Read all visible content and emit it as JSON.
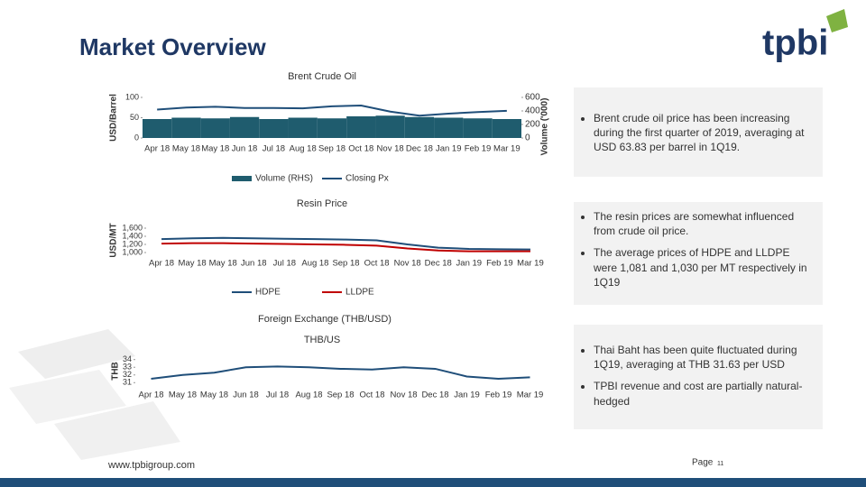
{
  "header": {
    "title": "Market Overview",
    "logo": "tpbi"
  },
  "section_heading": "Foreign Exchange (THB/USD)",
  "chart_data": [
    {
      "type": "combo",
      "title": "Brent Crude Oil",
      "y_label": "USD/Barrel",
      "y2_label": "Volume ('000)",
      "categories": [
        "Apr 18",
        "May 18",
        "May 18",
        "Jun 18",
        "Jul 18",
        "Aug 18",
        "Sep 18",
        "Oct 18",
        "Nov 18",
        "Dec 18",
        "Jan 19",
        "Feb 19",
        "Mar 19"
      ],
      "series": [
        {
          "name": "Volume (RHS)",
          "type": "bar",
          "axis": "y2",
          "color": "#1f5c6e",
          "values": [
            280,
            300,
            290,
            310,
            280,
            300,
            290,
            320,
            330,
            310,
            300,
            290,
            280
          ]
        },
        {
          "name": "Closing Px",
          "type": "line",
          "color": "#1f4e79",
          "values": [
            70,
            75,
            77,
            74,
            74,
            73,
            78,
            80,
            65,
            55,
            60,
            64,
            67
          ]
        }
      ],
      "ylim": [
        0,
        100
      ],
      "yticks": [
        0,
        50,
        100
      ],
      "y2lim": [
        0,
        600
      ],
      "y2ticks": [
        0,
        200,
        400,
        600
      ],
      "legend": "bottom"
    },
    {
      "type": "line",
      "title": "Resin Price",
      "y_label": "USD/MT",
      "categories": [
        "Apr 18",
        "May 18",
        "May 18",
        "Jun 18",
        "Jul 18",
        "Aug 18",
        "Sep 18",
        "Oct 18",
        "Nov 18",
        "Dec 18",
        "Jan 19",
        "Feb 19",
        "Mar 19"
      ],
      "series": [
        {
          "name": "HDPE",
          "color": "#1f4e79",
          "values": [
            1330,
            1350,
            1360,
            1350,
            1340,
            1330,
            1320,
            1300,
            1200,
            1120,
            1090,
            1080,
            1075
          ]
        },
        {
          "name": "LLDPE",
          "color": "#c00000",
          "values": [
            1220,
            1230,
            1230,
            1220,
            1210,
            1200,
            1190,
            1170,
            1100,
            1050,
            1030,
            1030,
            1030
          ]
        }
      ],
      "ylim": [
        1000,
        1600
      ],
      "yticks": [
        {
          "value": 1000,
          "label": "1,000"
        },
        {
          "value": 1200,
          "label": "1,200"
        },
        {
          "value": 1400,
          "label": "1,400"
        },
        {
          "value": 1600,
          "label": "1,600"
        }
      ],
      "legend": "bottom"
    },
    {
      "type": "line",
      "title": "THB/US",
      "y_label": "THB",
      "categories": [
        "Apr 18",
        "May 18",
        "May 18",
        "Jun 18",
        "Jul 18",
        "Aug 18",
        "Sep 18",
        "Oct 18",
        "Nov 18",
        "Dec 18",
        "Jan 19",
        "Feb 19",
        "Mar 19"
      ],
      "series": [
        {
          "color": "#1f4e79",
          "values": [
            31.5,
            32,
            32.3,
            33,
            33.1,
            33,
            32.8,
            32.7,
            33,
            32.8,
            31.8,
            31.5,
            31.7
          ]
        }
      ],
      "ylim": [
        30.8,
        34.2
      ],
      "yticks": [
        31,
        32,
        33,
        34
      ]
    }
  ],
  "panels": [
    {
      "bullets": [
        "Brent crude oil price has been increasing during the first quarter of 2019, averaging at USD 63.83 per barrel in 1Q19."
      ]
    },
    {
      "bullets": [
        "The resin prices are somewhat influenced from crude oil price.",
        "The average prices of HDPE and LLDPE were 1,081 and 1,030 per MT respectively in 1Q19"
      ]
    },
    {
      "bullets": [
        "Thai Baht has been quite fluctuated during 1Q19, averaging at THB 31.63 per USD",
        "TPBI revenue and cost are partially natural-hedged"
      ]
    }
  ],
  "footer": {
    "url": "www.tpbigroup.com",
    "page_label": "Page",
    "page_number": "11"
  }
}
